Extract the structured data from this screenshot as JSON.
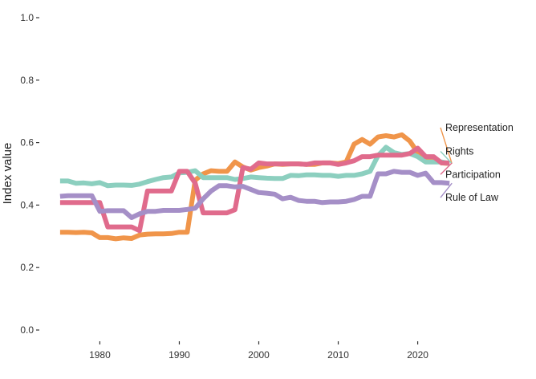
{
  "chart_data": {
    "type": "line",
    "title": "",
    "xlabel": "",
    "ylabel": "Index value",
    "xlim": [
      1974,
      2026
    ],
    "ylim": [
      0,
      1
    ],
    "x_ticks": [
      1980,
      1990,
      2000,
      2010,
      2020
    ],
    "y_ticks": [
      "0.0",
      "0.2",
      "0.4",
      "0.6",
      "0.8",
      "1.0"
    ],
    "grid": false,
    "legend": "direct labels at right end of lines",
    "x": [
      1975,
      1976,
      1977,
      1978,
      1979,
      1980,
      1981,
      1982,
      1983,
      1984,
      1985,
      1986,
      1987,
      1988,
      1989,
      1990,
      1991,
      1992,
      1993,
      1994,
      1995,
      1996,
      1997,
      1998,
      1999,
      2000,
      2001,
      2002,
      2003,
      2004,
      2005,
      2006,
      2007,
      2008,
      2009,
      2010,
      2011,
      2012,
      2013,
      2014,
      2015,
      2016,
      2017,
      2018,
      2019,
      2020,
      2021,
      2022,
      2023,
      2024
    ],
    "series": [
      {
        "name": "Representation",
        "color": "#f0954a",
        "values": [
          0.313,
          0.313,
          0.312,
          0.313,
          0.311,
          0.296,
          0.296,
          0.292,
          0.295,
          0.293,
          0.304,
          0.307,
          0.308,
          0.308,
          0.309,
          0.313,
          0.313,
          0.48,
          0.5,
          0.51,
          0.508,
          0.508,
          0.538,
          0.522,
          0.512,
          0.52,
          0.525,
          0.532,
          0.53,
          0.532,
          0.532,
          0.53,
          0.53,
          0.535,
          0.535,
          0.533,
          0.538,
          0.595,
          0.61,
          0.595,
          0.618,
          0.622,
          0.618,
          0.625,
          0.605,
          0.568,
          0.548,
          0.552,
          0.535,
          0.533
        ]
      },
      {
        "name": "Rights",
        "color": "#8ccfbf",
        "values": [
          0.477,
          0.477,
          0.47,
          0.471,
          0.468,
          0.472,
          0.462,
          0.464,
          0.464,
          0.463,
          0.467,
          0.475,
          0.482,
          0.488,
          0.49,
          0.503,
          0.505,
          0.51,
          0.488,
          0.488,
          0.488,
          0.488,
          0.482,
          0.485,
          0.49,
          0.488,
          0.486,
          0.485,
          0.485,
          0.495,
          0.494,
          0.497,
          0.497,
          0.495,
          0.495,
          0.492,
          0.495,
          0.495,
          0.5,
          0.508,
          0.558,
          0.585,
          0.568,
          0.562,
          0.565,
          0.555,
          0.538,
          0.538,
          0.538,
          0.533
        ]
      },
      {
        "name": "Participation",
        "color": "#e06b8c",
        "values": [
          0.408,
          0.408,
          0.408,
          0.408,
          0.408,
          0.408,
          0.33,
          0.33,
          0.33,
          0.33,
          0.318,
          0.445,
          0.445,
          0.445,
          0.445,
          0.508,
          0.508,
          0.47,
          0.375,
          0.375,
          0.375,
          0.375,
          0.385,
          0.52,
          0.515,
          0.535,
          0.532,
          0.532,
          0.532,
          0.532,
          0.532,
          0.53,
          0.535,
          0.535,
          0.535,
          0.53,
          0.535,
          0.542,
          0.555,
          0.555,
          0.56,
          0.56,
          0.56,
          0.56,
          0.565,
          0.582,
          0.555,
          0.555,
          0.535,
          0.535
        ]
      },
      {
        "name": "Rule of Law",
        "color": "#a58fc7",
        "values": [
          0.428,
          0.43,
          0.43,
          0.43,
          0.43,
          0.38,
          0.382,
          0.382,
          0.382,
          0.36,
          0.372,
          0.38,
          0.38,
          0.383,
          0.383,
          0.383,
          0.386,
          0.39,
          0.42,
          0.445,
          0.462,
          0.462,
          0.458,
          0.46,
          0.45,
          0.44,
          0.438,
          0.435,
          0.42,
          0.425,
          0.415,
          0.412,
          0.412,
          0.408,
          0.41,
          0.41,
          0.412,
          0.418,
          0.428,
          0.428,
          0.5,
          0.5,
          0.508,
          0.505,
          0.505,
          0.495,
          0.502,
          0.472,
          0.472,
          0.47
        ]
      }
    ],
    "labels": [
      {
        "name": "Representation",
        "color": "#f0954a",
        "text_y": 0.648
      },
      {
        "name": "Rights",
        "color": "#8ccfbf",
        "text_y": 0.572
      },
      {
        "name": "Participation",
        "color": "#e06b8c",
        "text_y": 0.498
      },
      {
        "name": "Rule of Law",
        "color": "#a58fc7",
        "text_y": 0.424
      }
    ]
  }
}
